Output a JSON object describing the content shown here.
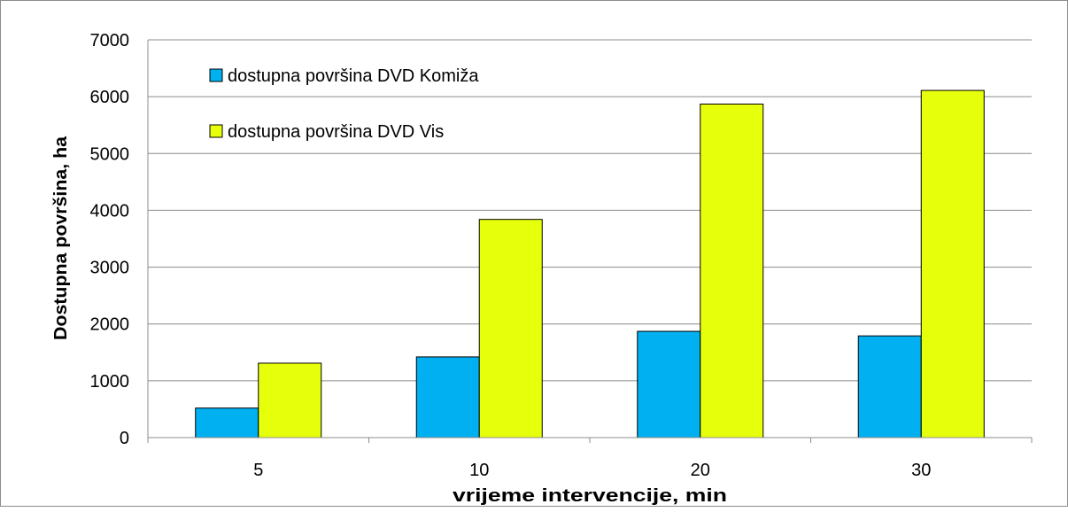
{
  "chart_data": {
    "type": "bar",
    "title": "",
    "xlabel": "vrijeme intervencije, min",
    "ylabel": "Dostupna površina, ha",
    "categories": [
      "5",
      "10",
      "20",
      "30"
    ],
    "series": [
      {
        "name": "dostupna površina DVD Komiža",
        "values": [
          520,
          1420,
          1870,
          1790
        ],
        "color": "#00b0f0"
      },
      {
        "name": "dostupna površina DVD Vis",
        "values": [
          1310,
          3840,
          5870,
          6110
        ],
        "color": "#e6ff0a"
      }
    ],
    "ylim": [
      0,
      7000
    ],
    "yticks": [
      "0",
      "1000",
      "2000",
      "3000",
      "4000",
      "5000",
      "6000",
      "7000"
    ],
    "grid": true,
    "legend_position": "top-left"
  }
}
